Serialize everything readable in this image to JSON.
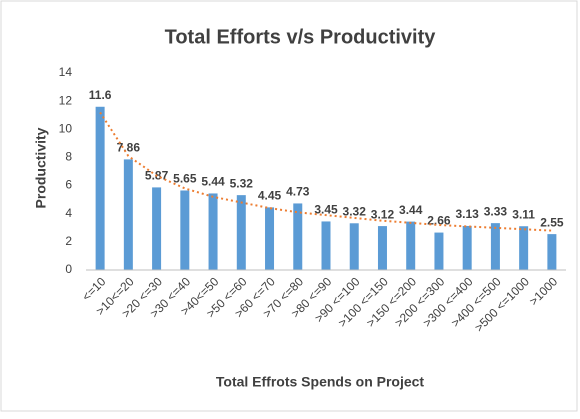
{
  "chart_data": {
    "type": "bar",
    "title": "Total Efforts v/s Productivity",
    "x_label": "Total Effrots Spends on Project",
    "y_label": "Productivity",
    "categories": [
      "<=10",
      ">10<=20",
      ">20 <=30",
      ">30 <=40",
      ">40<=50",
      ">50 <=60",
      ">60 <=70",
      ">70 <=80",
      ">80 <=90",
      ">90 <=100",
      ">100 <=150",
      ">150 <=200",
      ">200 <=300",
      ">300 <=400",
      ">400 <=500",
      ">500 <=1000",
      ">1000"
    ],
    "values": [
      11.6,
      7.86,
      5.87,
      5.65,
      5.44,
      5.32,
      4.45,
      4.73,
      3.45,
      3.32,
      3.12,
      3.44,
      2.66,
      3.13,
      3.33,
      3.11,
      2.55
    ],
    "color": "#5b9bd5",
    "trendline": {
      "color": "#ed7d31",
      "values": [
        11.2,
        8.1,
        6.7,
        5.8,
        5.2,
        4.8,
        4.4,
        4.1,
        3.9,
        3.7,
        3.5,
        3.35,
        3.2,
        3.1,
        3.0,
        2.9,
        2.8
      ]
    },
    "ylim": [
      0,
      14
    ],
    "yticks": [
      0,
      2,
      4,
      6,
      8,
      10,
      12,
      14
    ],
    "grid": false
  }
}
